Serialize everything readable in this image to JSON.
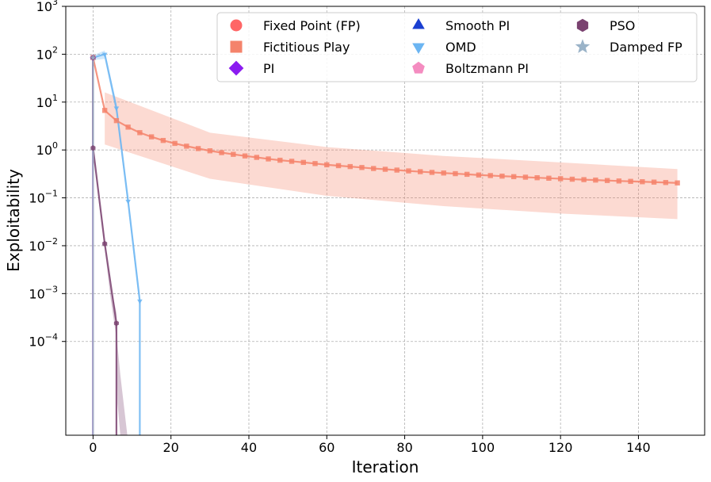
{
  "chart_data": {
    "type": "line",
    "xlabel": "Iteration",
    "ylabel": "Exploitability",
    "xlim": [
      -7,
      157
    ],
    "ylim": [
      1.1e-06,
      1000
    ],
    "yscale": "log",
    "grid": true,
    "legend_position": "top-right",
    "x_ticks": [
      {
        "value": 0,
        "label": "0"
      },
      {
        "value": 20,
        "label": "20"
      },
      {
        "value": 40,
        "label": "40"
      },
      {
        "value": 60,
        "label": "60"
      },
      {
        "value": 80,
        "label": "80"
      },
      {
        "value": 100,
        "label": "100"
      },
      {
        "value": 120,
        "label": "120"
      },
      {
        "value": 140,
        "label": "140"
      }
    ],
    "y_ticks": [
      {
        "value": 1000,
        "base": "10",
        "exp": "3"
      },
      {
        "value": 100,
        "base": "10",
        "exp": "2"
      },
      {
        "value": 10,
        "base": "10",
        "exp": "1"
      },
      {
        "value": 1,
        "base": "10",
        "exp": "0"
      },
      {
        "value": 0.1,
        "base": "10",
        "exp": "−1"
      },
      {
        "value": 0.01,
        "base": "10",
        "exp": "−2"
      },
      {
        "value": 0.001,
        "base": "10",
        "exp": "−3"
      },
      {
        "value": 0.0001,
        "base": "10",
        "exp": "−4"
      }
    ],
    "series": [
      {
        "name": "Fixed Point (FP)",
        "color": "#ff6666",
        "marker": "circle",
        "x": [
          0,
          0
        ],
        "y": [
          85,
          1.1e-06
        ]
      },
      {
        "name": "Fictitious Play",
        "color": "#f4836b",
        "marker": "square",
        "x": [
          0,
          3,
          6,
          9,
          12,
          15,
          18,
          21,
          24,
          27,
          30,
          33,
          36,
          39,
          42,
          45,
          48,
          51,
          54,
          57,
          60,
          63,
          66,
          69,
          72,
          75,
          78,
          81,
          84,
          87,
          90,
          93,
          96,
          99,
          102,
          105,
          108,
          111,
          114,
          117,
          120,
          123,
          126,
          129,
          132,
          135,
          138,
          141,
          144,
          147,
          150
        ],
        "y": [
          85,
          6.7,
          4.1,
          3.0,
          2.3,
          1.88,
          1.58,
          1.37,
          1.2,
          1.07,
          0.96,
          0.88,
          0.81,
          0.75,
          0.7,
          0.65,
          0.61,
          0.58,
          0.55,
          0.52,
          0.49,
          0.47,
          0.45,
          0.43,
          0.41,
          0.395,
          0.38,
          0.365,
          0.352,
          0.34,
          0.33,
          0.32,
          0.31,
          0.3,
          0.292,
          0.284,
          0.277,
          0.27,
          0.263,
          0.257,
          0.251,
          0.245,
          0.24,
          0.235,
          0.23,
          0.225,
          0.221,
          0.217,
          0.213,
          0.209,
          0.205
        ],
        "band_x": [
          3,
          30,
          60,
          90,
          120,
          150
        ],
        "band_upper": [
          16,
          2.3,
          1.15,
          0.75,
          0.55,
          0.4
        ],
        "band_lower": [
          1.3,
          0.25,
          0.11,
          0.067,
          0.047,
          0.036
        ]
      },
      {
        "name": "PI",
        "color": "#8b1cf0",
        "marker": "diamond",
        "x": [
          0,
          0
        ],
        "y": [
          85,
          1.1e-06
        ]
      },
      {
        "name": "Smooth PI",
        "color": "#1a3fd1",
        "marker": "triangle-up",
        "x": [
          0,
          0
        ],
        "y": [
          85,
          1.1e-06
        ]
      },
      {
        "name": "OMD",
        "color": "#6bb5f2",
        "marker": "triangle-down",
        "x": [
          0,
          3,
          6,
          9,
          12,
          12
        ],
        "y": [
          85,
          100,
          7.5,
          0.085,
          0.0007,
          1.1e-06
        ],
        "band_x": [
          0,
          3,
          6,
          9,
          12
        ],
        "band_upper": [
          95,
          120,
          9.5,
          0.11,
          0.0009
        ],
        "band_lower": [
          75,
          80,
          5.5,
          0.06,
          0.0005
        ]
      },
      {
        "name": "Boltzmann PI",
        "color": "#f48cc0",
        "marker": "pentagon",
        "x": [
          0,
          0
        ],
        "y": [
          85,
          1.1e-06
        ]
      },
      {
        "name": "PSO",
        "color": "#7a4270",
        "marker": "hexagon",
        "x": [
          0,
          0,
          3,
          6,
          6
        ],
        "y": [
          85,
          1.1,
          0.011,
          0.00024,
          1.1e-06
        ],
        "band_x": [
          0,
          1.5,
          3,
          4.5,
          6,
          6.3,
          7,
          8.8
        ],
        "band_upper": [
          1.2,
          0.12,
          0.013,
          0.0015,
          0.0004,
          8e-05,
          2e-05,
          1.1e-06
        ],
        "band_lower": [
          1.0,
          0.08,
          0.009,
          0.0008,
          0.00012,
          5e-06,
          1.1e-06,
          1.1e-06
        ]
      },
      {
        "name": "Damped FP",
        "color": "#9ab3c8",
        "marker": "star",
        "x": [
          0,
          0
        ],
        "y": [
          85,
          1.1e-06
        ]
      }
    ]
  }
}
